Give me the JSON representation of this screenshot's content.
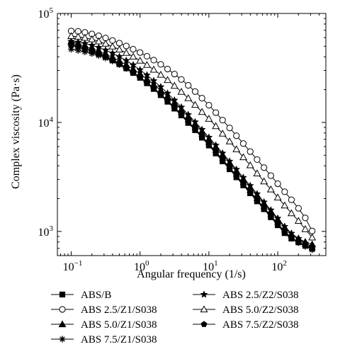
{
  "chart_data": {
    "type": "line",
    "title": "",
    "xlabel": "Angular frequency (1/s)",
    "ylabel": "Complex viscosity (Pa·s)",
    "xscale": "log",
    "yscale": "log",
    "xlim": [
      0.063,
      500
    ],
    "ylim": [
      600,
      100000
    ],
    "grid": false,
    "legend_position": "bottom",
    "x_ticks": [
      {
        "value": 0.1,
        "base": "10",
        "exp": "−1"
      },
      {
        "value": 1,
        "base": "10",
        "exp": "0"
      },
      {
        "value": 10,
        "base": "10",
        "exp": "1"
      },
      {
        "value": 100,
        "base": "10",
        "exp": "2"
      }
    ],
    "y_ticks": [
      {
        "value": 1000,
        "base": "10",
        "exp": "3"
      },
      {
        "value": 10000,
        "base": "10",
        "exp": "4"
      },
      {
        "value": 100000,
        "base": "10",
        "exp": "5"
      }
    ],
    "x": [
      0.1,
      0.126,
      0.158,
      0.2,
      0.251,
      0.316,
      0.398,
      0.501,
      0.631,
      0.794,
      1.0,
      1.26,
      1.58,
      2.0,
      2.51,
      3.16,
      3.98,
      5.01,
      6.31,
      7.94,
      10.0,
      12.6,
      15.8,
      20.0,
      25.1,
      31.6,
      39.8,
      50.1,
      63.1,
      79.4,
      100,
      126,
      158,
      200,
      251,
      316
    ],
    "series": [
      {
        "name": "ABS/B",
        "marker": "square",
        "values": [
          52000,
          49800,
          47500,
          45200,
          42600,
          40000,
          37200,
          34300,
          31400,
          28500,
          25700,
          22900,
          20300,
          17800,
          15500,
          13400,
          11600,
          9900,
          8500,
          7250,
          6150,
          5200,
          4400,
          3720,
          3140,
          2650,
          2240,
          1890,
          1600,
          1350,
          1140,
          965,
          860,
          795,
          740,
          700
        ]
      },
      {
        "name": "ABS 2.5/Z1/S038",
        "marker": "circle-open",
        "values": [
          69000,
          68500,
          67000,
          64800,
          62300,
          59500,
          56500,
          53400,
          50300,
          47000,
          43800,
          40500,
          37300,
          34100,
          30900,
          27800,
          24800,
          21900,
          19200,
          16700,
          14400,
          12300,
          10500,
          8900,
          7550,
          6400,
          5400,
          4560,
          3850,
          3250,
          2740,
          2310,
          1950,
          1630,
          1330,
          1010
        ]
      },
      {
        "name": "ABS 5.0/Z1/S038",
        "marker": "triangle",
        "values": [
          55000,
          52500,
          50000,
          47600,
          45000,
          42300,
          39500,
          36600,
          33700,
          30800,
          27900,
          25000,
          22300,
          19700,
          17300,
          15100,
          13100,
          11300,
          9700,
          8300,
          7050,
          5980,
          5060,
          4270,
          3600,
          3030,
          2550,
          2150,
          1810,
          1530,
          1290,
          1090,
          945,
          860,
          800,
          760
        ]
      },
      {
        "name": "ABS 7.5/Z1/S038",
        "marker": "asterisk",
        "values": [
          47000,
          45800,
          44400,
          42900,
          41100,
          39000,
          36600,
          34000,
          31300,
          28600,
          25900,
          23200,
          20600,
          18100,
          15800,
          13700,
          11800,
          10100,
          8650,
          7380,
          6270,
          5310,
          4490,
          3790,
          3200,
          2700,
          2280,
          1920,
          1620,
          1370,
          1160,
          985,
          865,
          790,
          730,
          680
        ]
      },
      {
        "name": "ABS 2.5/Z2/S038",
        "marker": "star",
        "values": [
          55500,
          54500,
          53000,
          51000,
          48700,
          46100,
          43200,
          40200,
          37000,
          33700,
          30400,
          27200,
          24100,
          21200,
          18500,
          16000,
          13800,
          11800,
          10100,
          8600,
          7300,
          6180,
          5220,
          4400,
          3710,
          3120,
          2630,
          2210,
          1860,
          1570,
          1320,
          1110,
          960,
          860,
          780,
          720
        ]
      },
      {
        "name": "ABS 5.0/Z2/S038",
        "marker": "triangle-open",
        "values": [
          62000,
          61200,
          59800,
          57900,
          55500,
          52800,
          49800,
          46700,
          43500,
          40200,
          36900,
          33700,
          30500,
          27400,
          24500,
          21700,
          19100,
          16700,
          14500,
          12500,
          10800,
          9250,
          7900,
          6700,
          5680,
          4800,
          4050,
          3410,
          2880,
          2430,
          2050,
          1730,
          1470,
          1250,
          1050,
          880
        ]
      },
      {
        "name": "ABS 7.5/Z2/S038",
        "marker": "pentagon",
        "values": [
          51000,
          49500,
          47600,
          45500,
          43100,
          40500,
          37700,
          34800,
          31900,
          29000,
          26100,
          23300,
          20700,
          18200,
          15900,
          13800,
          11900,
          10200,
          8750,
          7470,
          6360,
          5400,
          4570,
          3860,
          3260,
          2750,
          2320,
          1960,
          1650,
          1400,
          1180,
          1000,
          880,
          800,
          740,
          690
        ]
      }
    ]
  }
}
